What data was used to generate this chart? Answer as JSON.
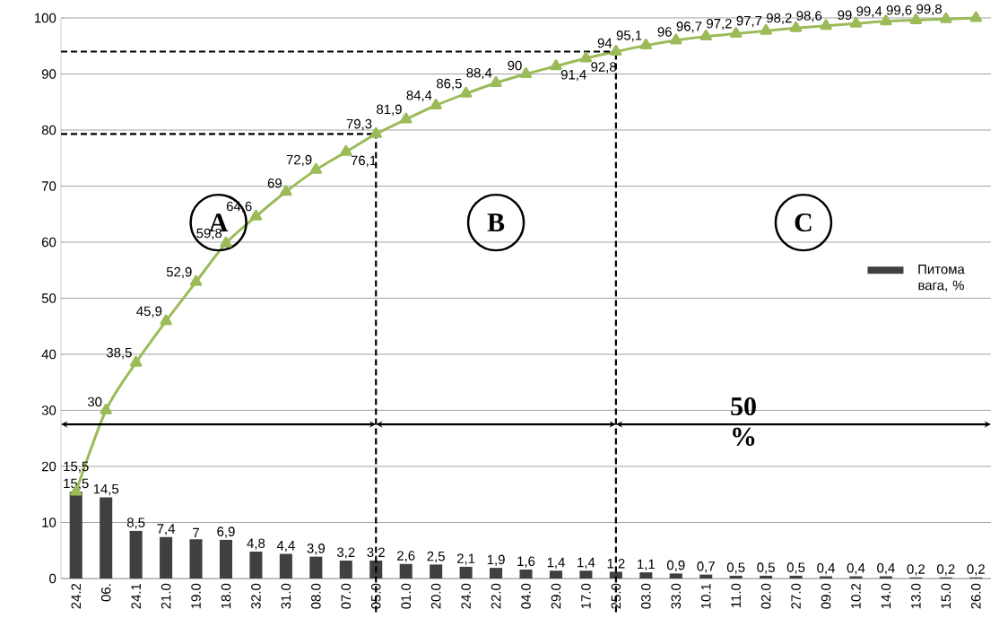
{
  "chart_data": {
    "type": "bar",
    "categories": [
      "24.2",
      "06.",
      "24.1",
      "21.0",
      "19.0",
      "18.0",
      "32.0",
      "31.0",
      "08.0",
      "07.0",
      "05.0",
      "01.0",
      "20.0",
      "24.0",
      "22.0",
      "04.0",
      "29.0",
      "17.0",
      "25.0",
      "03.0",
      "33.0",
      "10.1",
      "11.0",
      "02.0",
      "27.0",
      "09.0",
      "10.2",
      "14.0",
      "13.0",
      "15.0",
      "26.0"
    ],
    "series": [
      {
        "name": "Питома вага, %",
        "color": "#404040",
        "values": [
          15.5,
          14.5,
          8.5,
          7.4,
          7,
          6.9,
          4.8,
          4.4,
          3.9,
          3.2,
          3.2,
          2.6,
          2.5,
          2.1,
          1.9,
          1.6,
          1.4,
          1.4,
          1.2,
          1.1,
          0.9,
          0.7,
          0.5,
          0.5,
          0.5,
          0.4,
          0.4,
          0.4,
          0.2,
          0.2,
          0.2
        ],
        "value_labels": [
          "15,5",
          "14,5",
          "8,5",
          "7,4",
          "7",
          "6,9",
          "4,8",
          "4,4",
          "3,9",
          "3,2",
          "3,2",
          "2,6",
          "2,5",
          "2,1",
          "1,9",
          "1,6",
          "1,4",
          "1,4",
          "1,2",
          "1,1",
          "0,9",
          "0,7",
          "0,5",
          "0,5",
          "0,5",
          "0,4",
          "0,4",
          "0,4",
          "0,2",
          "0,2",
          "0,2"
        ]
      },
      {
        "type": "line",
        "color": "#9bbb59",
        "marker": "triangle",
        "values": [
          15.5,
          30,
          38.5,
          45.9,
          52.9,
          59.8,
          64.6,
          69,
          72.9,
          76.1,
          79.3,
          81.9,
          84.4,
          86.5,
          88.4,
          90,
          91.4,
          92.8,
          94,
          95.1,
          96,
          96.7,
          97.2,
          97.7,
          98.2,
          98.6,
          99,
          99.4,
          99.6,
          99.8,
          100
        ],
        "value_labels": [
          "15,5",
          "30",
          "38,5",
          "45,9",
          "52,9",
          "59,8",
          "64,6",
          "69",
          "72,9",
          "76,1",
          "79,3",
          "81,9",
          "84,4",
          "86,5",
          "88,4",
          "90",
          "91,4",
          "92,8",
          "94",
          "95,1",
          "96",
          "96,7",
          "97,2",
          "97,7",
          "98,2",
          "98,6",
          "99",
          "99,4",
          "99,6",
          "99,8",
          null
        ]
      }
    ],
    "ylim": [
      0,
      100
    ],
    "yticks": [
      0,
      10,
      20,
      30,
      40,
      50,
      60,
      70,
      80,
      90,
      100
    ],
    "grid": "y",
    "legend": "right",
    "ref_lines": [
      {
        "axis": "y",
        "value": 79.3,
        "color": "#000000",
        "line_style": "dashed"
      },
      {
        "axis": "x",
        "value": "05.0",
        "color": "#000000",
        "line_style": "dashed"
      },
      {
        "axis": "y",
        "value": 94,
        "color": "#000000",
        "line_style": "dashed"
      },
      {
        "axis": "x",
        "value": "25.0",
        "color": "#000000",
        "line_style": "dashed"
      }
    ],
    "annotations": [
      "A",
      "B",
      "C",
      "50 %"
    ]
  }
}
